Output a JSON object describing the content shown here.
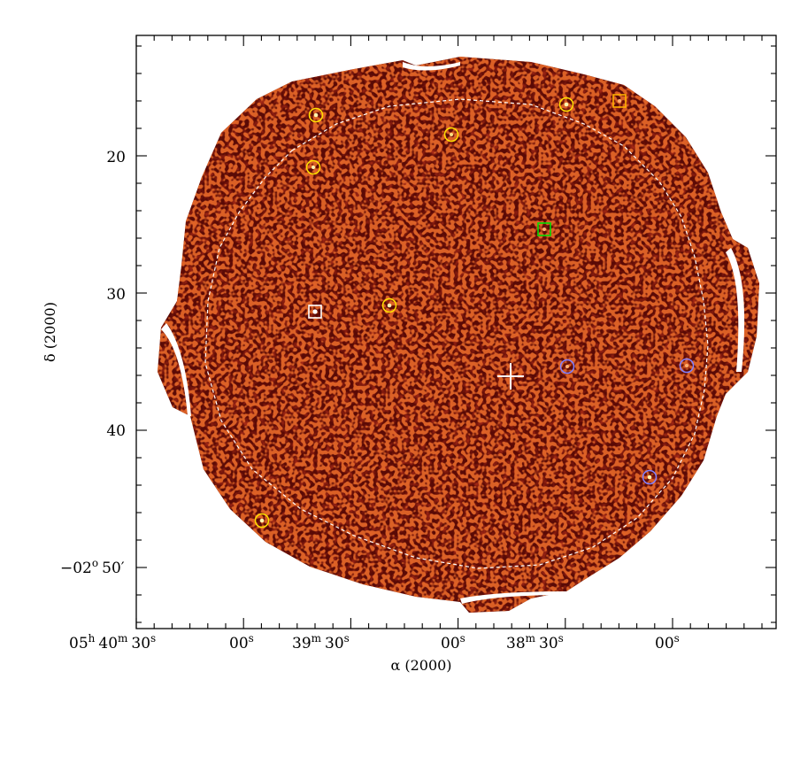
{
  "axes": {
    "xlabel": "α (2000)",
    "ylabel": "δ (2000)",
    "x_ticks": [
      {
        "h": "05",
        "hu": "h",
        "m": "40",
        "mu": "m",
        "s": "30",
        "su": "s"
      },
      {
        "s": "00",
        "su": "s"
      },
      {
        "m": "39",
        "mu": "m",
        "s": "30",
        "su": "s"
      },
      {
        "s": "00",
        "su": "s"
      },
      {
        "m": "38",
        "mu": "m",
        "s": "30",
        "su": "s"
      },
      {
        "s": "00",
        "su": "s"
      }
    ],
    "y_ticks": [
      {
        "label": "20"
      },
      {
        "label": "30"
      },
      {
        "label": "40"
      },
      {
        "deg": "−02",
        "degu": "o",
        "label": "50′"
      }
    ]
  },
  "colors": {
    "background_field": "#5a0a06",
    "noise_bright": "#d0401a",
    "yellow_marker": "#ffe000",
    "blue_marker": "#8080ff",
    "green_marker": "#00dd00",
    "orange_marker": "#ffb000",
    "white_marker": "#ffffff",
    "contour": "#ffffff"
  },
  "markers": [
    {
      "type": "circle",
      "color": "yellow"
    },
    {
      "type": "circle",
      "color": "yellow"
    },
    {
      "type": "circle",
      "color": "yellow"
    },
    {
      "type": "circle",
      "color": "yellow"
    },
    {
      "type": "circle",
      "color": "yellow"
    },
    {
      "type": "circle",
      "color": "yellow"
    },
    {
      "type": "circle",
      "color": "blue"
    },
    {
      "type": "circle",
      "color": "blue"
    },
    {
      "type": "circle",
      "color": "blue"
    },
    {
      "type": "square",
      "color": "orange"
    },
    {
      "type": "square",
      "color": "green"
    },
    {
      "type": "square",
      "color": "white"
    },
    {
      "type": "cross",
      "color": "white"
    }
  ]
}
